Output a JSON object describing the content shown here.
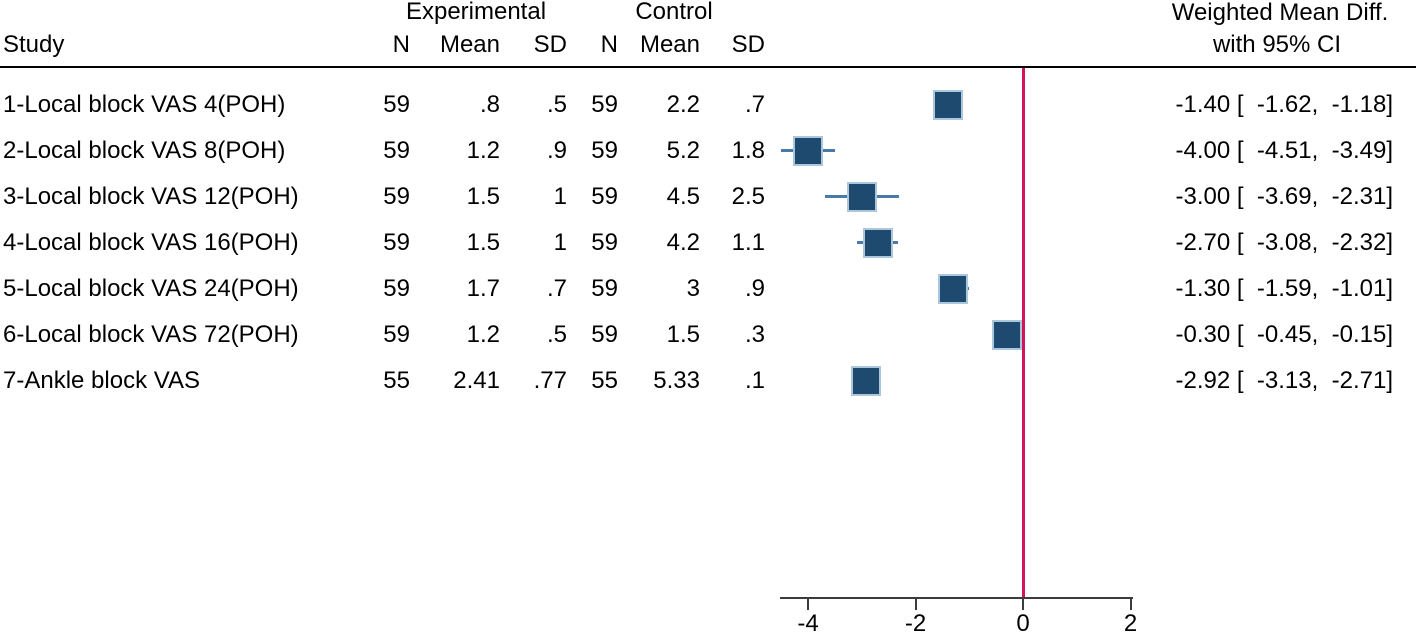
{
  "header": {
    "study": "Study",
    "experimental": "Experimental",
    "control": "Control",
    "n": "N",
    "mean": "Mean",
    "sd": "SD",
    "effect_line1": "Weighted Mean Diff.",
    "effect_line2": "with 95% CI"
  },
  "colors": {
    "square_fill": "#1E4A70",
    "square_border": "#ACC7DB",
    "whisker": "#4A7AA8",
    "zero_line": "#D2155A",
    "axis": "#3C3C3C",
    "text": "#000000",
    "separator": "#000000"
  },
  "chart_data": {
    "type": "scatter",
    "variant": "forest-plot",
    "title": "Weighted Mean Diff. with 95% CI",
    "xlabel": "",
    "ylabel": "",
    "grid": false,
    "x_axis": {
      "ticks": [
        -4,
        -2,
        0,
        2
      ],
      "range": [
        -4.55,
        2.05
      ],
      "zero_line": 0
    },
    "columns": [
      "Study",
      "N",
      "Mean",
      "SD",
      "N",
      "Mean",
      "SD",
      "Weighted Mean Diff. with 95% CI"
    ],
    "studies": [
      {
        "label": "1-Local block VAS 4(POH)",
        "exp_n": "59",
        "exp_mean": ".8",
        "exp_sd": ".5",
        "ctl_n": "59",
        "ctl_mean": "2.2",
        "ctl_sd": ".7",
        "est": -1.4,
        "ci_low": -1.62,
        "ci_high": -1.18,
        "ci_label": "-1.40 [  -1.62,  -1.18]"
      },
      {
        "label": "2-Local block VAS 8(POH)",
        "exp_n": "59",
        "exp_mean": "1.2",
        "exp_sd": ".9",
        "ctl_n": "59",
        "ctl_mean": "5.2",
        "ctl_sd": "1.8",
        "est": -4.0,
        "ci_low": -4.51,
        "ci_high": -3.49,
        "ci_label": "-4.00 [  -4.51,  -3.49]"
      },
      {
        "label": "3-Local block VAS 12(POH)",
        "exp_n": "59",
        "exp_mean": "1.5",
        "exp_sd": "1",
        "ctl_n": "59",
        "ctl_mean": "4.5",
        "ctl_sd": "2.5",
        "est": -3.0,
        "ci_low": -3.69,
        "ci_high": -2.31,
        "ci_label": "-3.00 [  -3.69,  -2.31]"
      },
      {
        "label": "4-Local block VAS 16(POH)",
        "exp_n": "59",
        "exp_mean": "1.5",
        "exp_sd": "1",
        "ctl_n": "59",
        "ctl_mean": "4.2",
        "ctl_sd": "1.1",
        "est": -2.7,
        "ci_low": -3.08,
        "ci_high": -2.32,
        "ci_label": "-2.70 [  -3.08,  -2.32]"
      },
      {
        "label": "5-Local block VAS 24(POH)",
        "exp_n": "59",
        "exp_mean": "1.7",
        "exp_sd": ".7",
        "ctl_n": "59",
        "ctl_mean": "3",
        "ctl_sd": ".9",
        "est": -1.3,
        "ci_low": -1.59,
        "ci_high": -1.01,
        "ci_label": "-1.30 [  -1.59,  -1.01]"
      },
      {
        "label": "6-Local block VAS 72(POH)",
        "exp_n": "59",
        "exp_mean": "1.2",
        "exp_sd": ".5",
        "ctl_n": "59",
        "ctl_mean": "1.5",
        "ctl_sd": ".3",
        "est": -0.3,
        "ci_low": -0.45,
        "ci_high": -0.15,
        "ci_label": "-0.30 [  -0.45,  -0.15]"
      },
      {
        "label": "7-Ankle block VAS",
        "exp_n": "55",
        "exp_mean": "2.41",
        "exp_sd": ".77",
        "ctl_n": "55",
        "ctl_mean": "5.33",
        "ctl_sd": ".1",
        "est": -2.92,
        "ci_low": -3.13,
        "ci_high": -2.71,
        "ci_label": "-2.92 [  -3.13,  -2.71]"
      }
    ]
  }
}
